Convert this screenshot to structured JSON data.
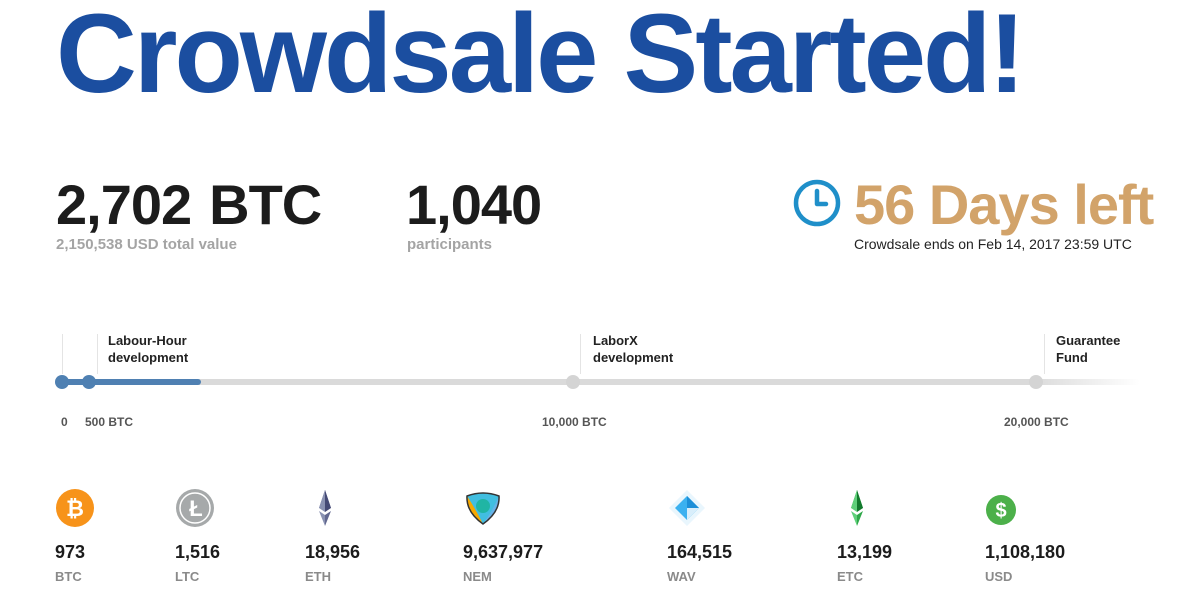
{
  "headline": "Crowdsale Started!",
  "stats": {
    "raised_amount": "2,702",
    "raised_unit": "BTC",
    "raised_usd": "2,150,538 USD total value",
    "participants_count": "1,040",
    "participants_label": "participants",
    "days_left": "56 Days left",
    "ends_on": "Crowdsale ends on Feb 14, 2017 23:59 UTC"
  },
  "progress": {
    "raised_btc": 2702,
    "max_btc": 20000,
    "milestones": [
      {
        "label_line1": "Labour-Hour",
        "label_line2": "development"
      },
      {
        "label_line1": "LaborX",
        "label_line2": "development"
      },
      {
        "label_line1": "Guarantee",
        "label_line2": "Fund"
      }
    ],
    "ticks": [
      "0",
      "500 BTC",
      "10,000 BTC",
      "20,000 BTC"
    ]
  },
  "coins": [
    {
      "code": "BTC",
      "amount": "973",
      "icon": "bitcoin-icon",
      "color": "#f7931a"
    },
    {
      "code": "LTC",
      "amount": "1,516",
      "icon": "litecoin-icon",
      "color": "#a6a9aa"
    },
    {
      "code": "ETH",
      "amount": "18,956",
      "icon": "ethereum-icon",
      "color": "#62688f"
    },
    {
      "code": "NEM",
      "amount": "9,637,977",
      "icon": "nem-icon",
      "color": "#41bee0"
    },
    {
      "code": "WAV",
      "amount": "164,515",
      "icon": "waves-icon",
      "color": "#3bb1f0"
    },
    {
      "code": "ETC",
      "amount": "13,199",
      "icon": "ethereum-classic-icon",
      "color": "#2fa84a"
    },
    {
      "code": "USD",
      "amount": "1,108,180",
      "icon": "dollar-icon",
      "color": "#4cb04a"
    }
  ],
  "colors": {
    "headline": "#1b4ea0",
    "days_left": "#d2a36a",
    "clock": "#1f8fc9",
    "progress_fill": "#4f80b2"
  }
}
